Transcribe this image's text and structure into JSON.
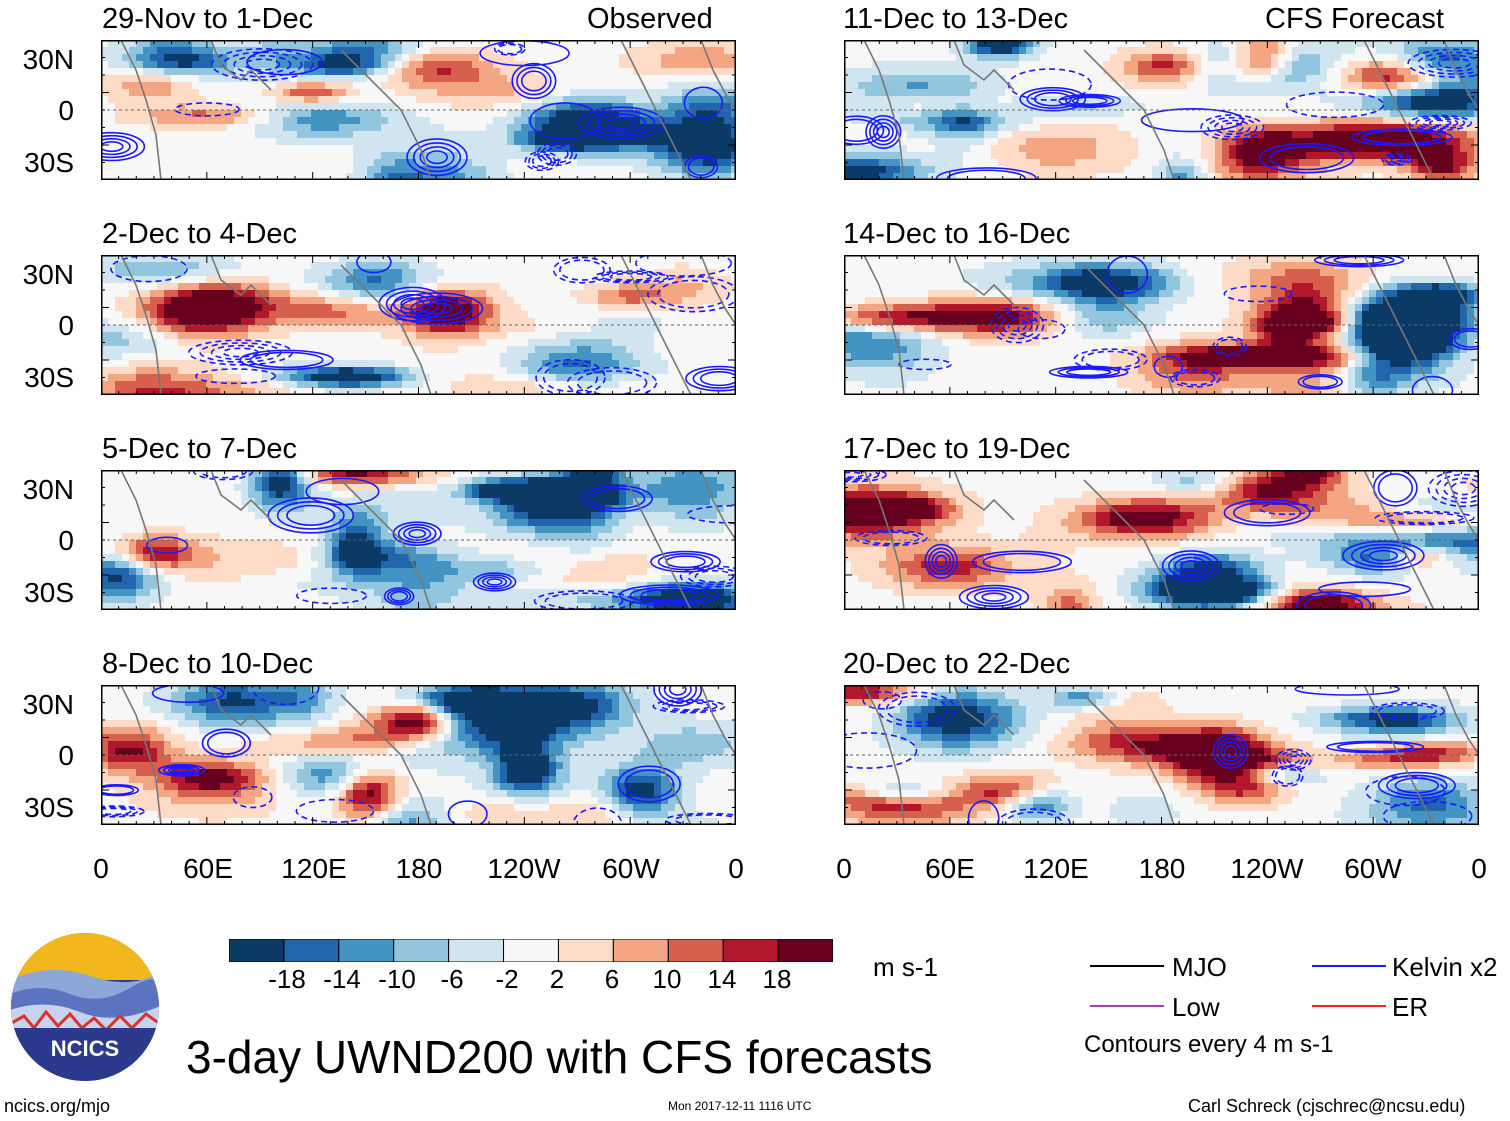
{
  "chart_data": {
    "type": "heatmap",
    "title": "3-day UWND200 with CFS forecasts",
    "variable": "UWND200 anomaly",
    "units": "m s-1",
    "x_ticks": [
      "0",
      "60E",
      "120E",
      "180",
      "120W",
      "60W",
      "0"
    ],
    "y_ticks": [
      "30N",
      "0",
      "30S"
    ],
    "xlim_deg_east": [
      0,
      360
    ],
    "ylim_deg": [
      -40,
      40
    ],
    "colorbar": {
      "ticks": [
        "-18",
        "-14",
        "-10",
        "-6",
        "-2",
        "2",
        "6",
        "10",
        "14",
        "18"
      ],
      "levels": [
        -18,
        -14,
        -10,
        -6,
        -2,
        2,
        6,
        10,
        14,
        18
      ],
      "colors": [
        "#0b3a66",
        "#2166ac",
        "#4393c3",
        "#92c5de",
        "#d1e5f0",
        "#f7f7f7",
        "#fddbc7",
        "#f4a582",
        "#d6604d",
        "#b2182b",
        "#67001f"
      ]
    },
    "contour_note": "Contours every 4 m s-1",
    "legend": [
      {
        "label": "MJO",
        "color": "#000000"
      },
      {
        "label": "Kelvin x2",
        "color": "#1a1aff"
      },
      {
        "label": "Low",
        "color": "#a040c0"
      },
      {
        "label": "ER",
        "color": "#ff2020"
      }
    ],
    "panels": [
      {
        "title": "29-Nov to 1-Dec",
        "tag": "Observed"
      },
      {
        "title": "11-Dec to 13-Dec",
        "tag": "CFS Forecast"
      },
      {
        "title": "2-Dec to 4-Dec",
        "tag": ""
      },
      {
        "title": "14-Dec to 16-Dec",
        "tag": ""
      },
      {
        "title": "5-Dec to 7-Dec",
        "tag": ""
      },
      {
        "title": "17-Dec to 19-Dec",
        "tag": ""
      },
      {
        "title": "8-Dec to 10-Dec",
        "tag": ""
      },
      {
        "title": "20-Dec to 22-Dec",
        "tag": ""
      }
    ]
  },
  "logo": {
    "text": "NCICS"
  },
  "footer": {
    "left": "ncics.org/mjo",
    "center": "Mon 2017-12-11 1116 UTC",
    "right": "Carl Schreck (cjschrec@ncsu.edu)"
  }
}
